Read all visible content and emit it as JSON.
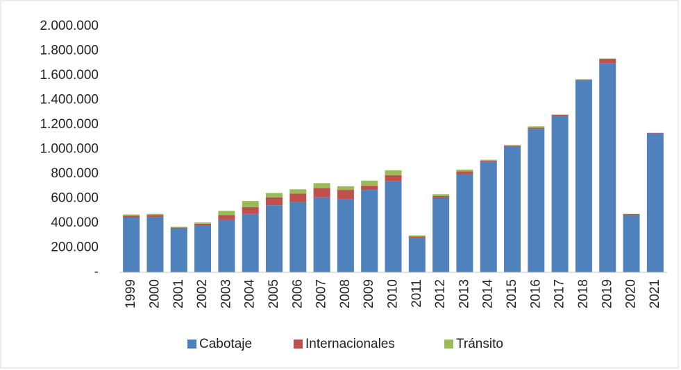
{
  "chart_data": {
    "type": "bar",
    "stacked": true,
    "categories": [
      "1999",
      "2000",
      "2001",
      "2002",
      "2003",
      "2004",
      "2005",
      "2006",
      "2007",
      "2008",
      "2009",
      "2010",
      "2011",
      "2012",
      "2013",
      "2014",
      "2015",
      "2016",
      "2017",
      "2018",
      "2019",
      "2020",
      "2021"
    ],
    "series": [
      {
        "name": "Cabotaje",
        "color": "#4f81bd",
        "values": [
          445000,
          450000,
          355000,
          380000,
          425000,
          475000,
          545000,
          570000,
          610000,
          595000,
          670000,
          740000,
          280000,
          605000,
          800000,
          900000,
          1020000,
          1165000,
          1270000,
          1565000,
          1700000,
          465000,
          1130000
        ]
      },
      {
        "name": "Internacionales",
        "color": "#c0504d",
        "values": [
          15000,
          15000,
          8000,
          15000,
          40000,
          55000,
          65000,
          70000,
          75000,
          75000,
          35000,
          50000,
          10000,
          15000,
          20000,
          8000,
          8000,
          10000,
          10000,
          3000,
          35000,
          8000,
          3000
        ]
      },
      {
        "name": "Tránsito",
        "color": "#9bbb59",
        "values": [
          10000,
          10000,
          7000,
          10000,
          35000,
          50000,
          35000,
          35000,
          40000,
          30000,
          40000,
          40000,
          10000,
          15000,
          15000,
          7000,
          7000,
          12000,
          3000,
          2000,
          3000,
          2000,
          2000
        ]
      }
    ],
    "ylim": [
      0,
      2000000
    ],
    "yticks": [
      {
        "value": 0,
        "label": "-"
      },
      {
        "value": 200000,
        "label": "200.000"
      },
      {
        "value": 400000,
        "label": "400.000"
      },
      {
        "value": 600000,
        "label": "600.000"
      },
      {
        "value": 800000,
        "label": "800.000"
      },
      {
        "value": 1000000,
        "label": "1.000.000"
      },
      {
        "value": 1200000,
        "label": "1.200.000"
      },
      {
        "value": 1400000,
        "label": "1.400.000"
      },
      {
        "value": 1600000,
        "label": "1.600.000"
      },
      {
        "value": 1800000,
        "label": "1.800.000"
      },
      {
        "value": 2000000,
        "label": "2.000.000"
      }
    ],
    "legend": "bottom"
  }
}
